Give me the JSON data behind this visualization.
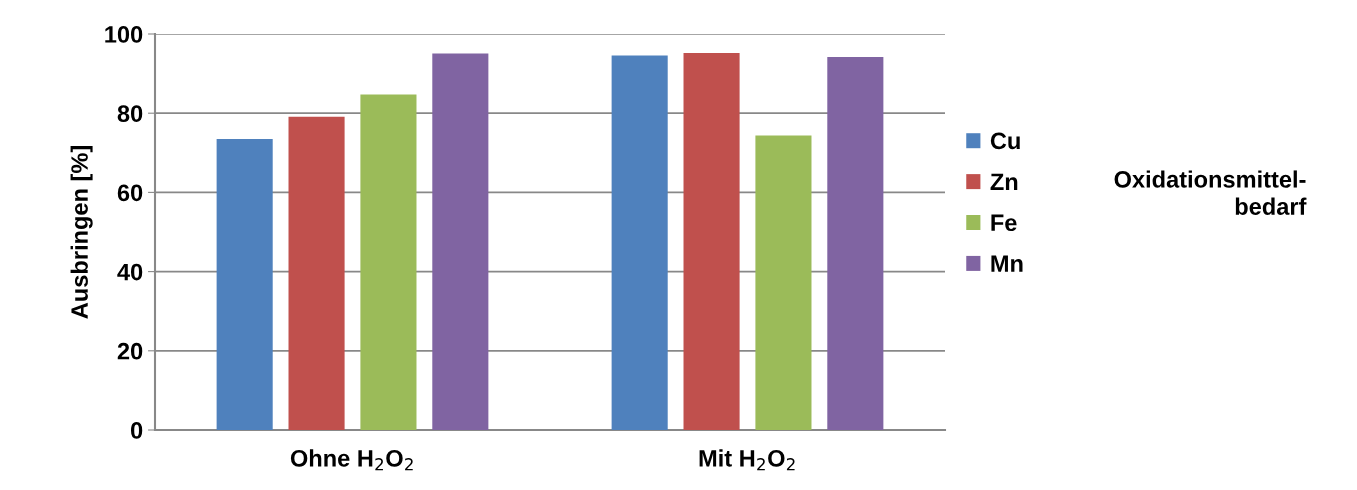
{
  "chart_data": {
    "type": "bar",
    "ylabel": "Ausbringen [%]",
    "annotations": [
      "Oxidationsmittel-\nbedarf"
    ],
    "categories": [
      "Ohne H$_{2}$O$_{2}$",
      "Mit H$_{2}$O$_{2}$"
    ],
    "series": [
      {
        "name": "Cu",
        "color": "#4f81bd",
        "values": [
          73.5,
          94.6
        ]
      },
      {
        "name": "Zn",
        "color": "#c0504d",
        "values": [
          79.1,
          95.2
        ]
      },
      {
        "name": "Fe",
        "color": "#9bbb59",
        "values": [
          84.7,
          74.4
        ]
      },
      {
        "name": "Mn",
        "color": "#8064a2",
        "values": [
          95.1,
          94.2
        ]
      }
    ],
    "ylim": [
      0,
      100
    ],
    "yticks": [
      0,
      20,
      40,
      60,
      80,
      100
    ],
    "grid": "y",
    "legend": "right"
  }
}
